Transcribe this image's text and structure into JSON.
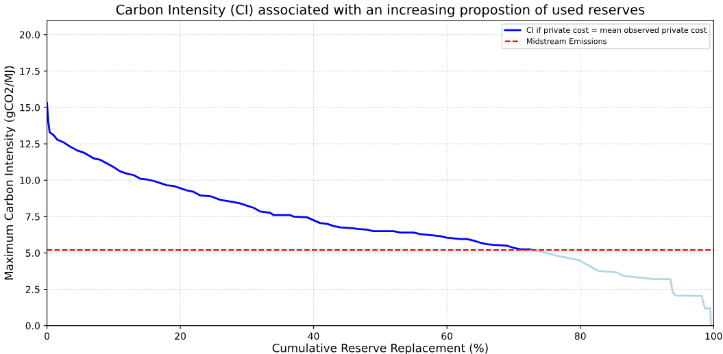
{
  "chart_data": {
    "type": "line",
    "title": "Carbon Intensity (CI) associated with an increasing propostion of used reserves",
    "xlabel": "Cumulative Reserve Replacement (%)",
    "ylabel": "Maximum Carbon Intensity (gCO2/MJ)",
    "series": [
      {
        "name": "CI if private cost = mean observed private cost",
        "color": "#0000ff",
        "x": [
          0,
          0.2,
          0.4,
          1,
          1.5,
          2.5,
          3.5,
          4.5,
          5.5,
          7,
          8,
          9,
          10,
          11,
          12,
          13,
          14,
          15,
          16,
          17,
          18,
          19,
          20,
          21,
          22,
          23,
          24.5,
          26,
          28,
          29,
          30,
          31,
          32,
          33.5,
          34,
          36.5,
          37,
          39,
          40,
          41,
          42,
          43,
          44,
          46,
          46.5,
          48,
          49,
          52,
          53,
          55,
          56,
          58,
          59,
          60,
          62,
          63,
          64,
          65,
          66,
          67,
          69,
          70,
          71,
          72.7
        ],
        "values": [
          15.3,
          14,
          13.3,
          13.1,
          12.8,
          12.6,
          12.3,
          12.05,
          11.9,
          11.5,
          11.4,
          11.15,
          10.9,
          10.6,
          10.45,
          10.35,
          10.1,
          10.05,
          9.95,
          9.8,
          9.65,
          9.6,
          9.45,
          9.3,
          9.2,
          8.95,
          8.9,
          8.65,
          8.5,
          8.4,
          8.25,
          8.1,
          7.85,
          7.75,
          7.6,
          7.6,
          7.5,
          7.45,
          7.25,
          7.05,
          7.0,
          6.85,
          6.75,
          6.7,
          6.65,
          6.6,
          6.5,
          6.5,
          6.4,
          6.4,
          6.3,
          6.2,
          6.15,
          6.05,
          5.95,
          5.95,
          5.85,
          5.7,
          5.6,
          5.55,
          5.5,
          5.35,
          5.25,
          5.25
        ]
      },
      {
        "color": "#add8e6",
        "x": [
          72.7,
          76.3,
          79.7,
          82.7,
          85.5,
          86.5,
          91,
          93.5,
          93.9,
          94.4,
          98.2,
          98.7,
          99.5,
          99.6
        ],
        "values": [
          5.25,
          4.83,
          4.52,
          3.77,
          3.66,
          3.42,
          3.2,
          3.2,
          2.26,
          2.07,
          2.05,
          1.19,
          1.19,
          0
        ]
      }
    ],
    "ref_lines": [
      {
        "axis": "y",
        "value": 5.2,
        "label": "Midstream Emissions",
        "color": "#ff0000",
        "line_style": "dashed"
      }
    ],
    "xlim": [
      0,
      100
    ],
    "xticks": [
      0,
      20,
      40,
      60,
      80,
      100
    ],
    "ylim": [
      0,
      21
    ],
    "yticks": [
      {
        "value": 0,
        "label": "0.0"
      },
      {
        "value": 2.5,
        "label": "2.5"
      },
      {
        "value": 5,
        "label": "5.0"
      },
      {
        "value": 7.5,
        "label": "7.5"
      },
      {
        "value": 10,
        "label": "10.0"
      },
      {
        "value": 12.5,
        "label": "12.5"
      },
      {
        "value": 15,
        "label": "15.0"
      },
      {
        "value": 17.5,
        "label": "17.5"
      },
      {
        "value": 20,
        "label": "20.0"
      }
    ],
    "grid": true,
    "legend": "top right",
    "marker": "none",
    "line_style": "solid"
  }
}
